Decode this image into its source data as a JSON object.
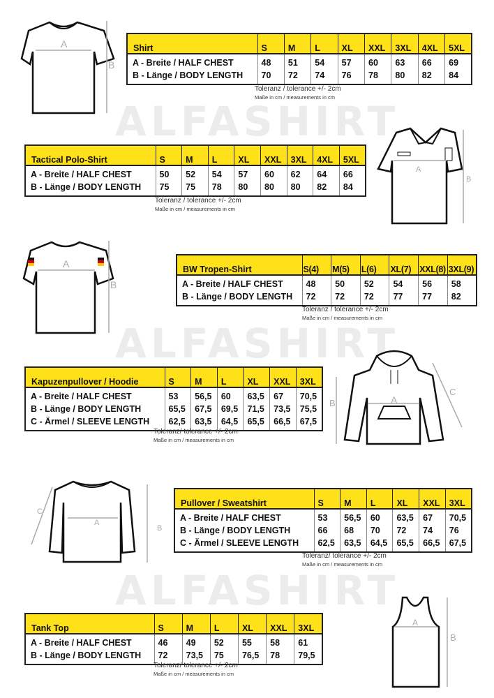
{
  "watermark": "ALFASHIRT",
  "accent_color": "#ffe11a",
  "products": [
    {
      "title": "Shirt",
      "sizes": [
        "S",
        "M",
        "L",
        "XL",
        "XXL",
        "3XL",
        "4XL",
        "5XL"
      ],
      "rows": [
        {
          "label": "A -  Breite / HALF CHEST",
          "values": [
            "48",
            "51",
            "54",
            "57",
            "60",
            "63",
            "66",
            "69"
          ]
        },
        {
          "label": "B -  Länge / BODY LENGTH",
          "values": [
            "70",
            "72",
            "74",
            "76",
            "78",
            "80",
            "82",
            "84"
          ]
        }
      ],
      "tolerance": "Toleranz / tolerance +/- 2cm",
      "note": "Maße in cm / measurements in cm",
      "dim_labels": [
        "A",
        "B"
      ]
    },
    {
      "title": "Tactical Polo-Shirt",
      "sizes": [
        "S",
        "M",
        "L",
        "XL",
        "XXL",
        "3XL",
        "4XL",
        "5XL"
      ],
      "rows": [
        {
          "label": "A -  Breite / HALF CHEST",
          "values": [
            "50",
            "52",
            "54",
            "57",
            "60",
            "62",
            "64",
            "66"
          ]
        },
        {
          "label": "B -  Länge / BODY LENGTH",
          "values": [
            "75",
            "75",
            "78",
            "80",
            "80",
            "80",
            "82",
            "84"
          ]
        }
      ],
      "tolerance": "Toleranz / tolerance +/- 2cm",
      "note": "Maße in cm / measurements in cm",
      "dim_labels": [
        "A",
        "B"
      ]
    },
    {
      "title": "BW Tropen-Shirt",
      "sizes": [
        "S(4)",
        "M(5)",
        "L(6)",
        "XL(7)",
        "XXL(8)",
        "3XL(9)"
      ],
      "rows": [
        {
          "label": "A -  Breite / HALF CHEST",
          "values": [
            "48",
            "50",
            "52",
            "54",
            "56",
            "58"
          ]
        },
        {
          "label": "B -  Länge / BODY LENGTH",
          "values": [
            "72",
            "72",
            "72",
            "77",
            "77",
            "82"
          ]
        }
      ],
      "tolerance": "Toleranz / tolerance +/- 2cm",
      "note": "Maße in cm / measurements in cm",
      "dim_labels": [
        "A",
        "B"
      ]
    },
    {
      "title": "Kapuzenpullover / Hoodie",
      "sizes": [
        "S",
        "M",
        "L",
        "XL",
        "XXL",
        "3XL"
      ],
      "rows": [
        {
          "label": "A -  Breite / HALF CHEST",
          "values": [
            "53",
            "56,5",
            "60",
            "63,5",
            "67",
            "70,5"
          ]
        },
        {
          "label": "B -  Länge / BODY LENGTH",
          "values": [
            "65,5",
            "67,5",
            "69,5",
            "71,5",
            "73,5",
            "75,5"
          ]
        },
        {
          "label": "C -  Ärmel / SLEEVE LENGTH",
          "values": [
            "62,5",
            "63,5",
            "64,5",
            "65,5",
            "66,5",
            "67,5"
          ]
        }
      ],
      "tolerance": "Toleranz/ tolerance +/- 2cm",
      "note": "Maße in cm / measurements in cm",
      "dim_labels": [
        "A",
        "B",
        "C"
      ]
    },
    {
      "title": "Pullover / Sweatshirt",
      "sizes": [
        "S",
        "M",
        "L",
        "XL",
        "XXL",
        "3XL"
      ],
      "rows": [
        {
          "label": "A -  Breite / HALF CHEST",
          "values": [
            "53",
            "56,5",
            "60",
            "63,5",
            "67",
            "70,5"
          ]
        },
        {
          "label": "B -  Länge / BODY LENGTH",
          "values": [
            "66",
            "68",
            "70",
            "72",
            "74",
            "76"
          ]
        },
        {
          "label": "C -  Ärmel / SLEEVE LENGTH",
          "values": [
            "62,5",
            "63,5",
            "64,5",
            "65,5",
            "66,5",
            "67,5"
          ]
        }
      ],
      "tolerance": "Toleranz/ tolerance +/- 2cm",
      "note": "Maße in cm / measurements in cm",
      "dim_labels": [
        "A",
        "B",
        "C"
      ]
    },
    {
      "title": "Tank Top",
      "sizes": [
        "S",
        "M",
        "L",
        "XL",
        "XXL",
        "3XL"
      ],
      "rows": [
        {
          "label": "A -  Breite / HALF CHEST",
          "values": [
            "46",
            "49",
            "52",
            "55",
            "58",
            "61"
          ]
        },
        {
          "label": "B -  Länge / BODY LENGTH",
          "values": [
            "72",
            "73,5",
            "75",
            "76,5",
            "78",
            "79,5"
          ]
        }
      ],
      "tolerance": "Toleranz/ tolerance +/- 2cm",
      "note": "Maße in cm / measurements in cm",
      "dim_labels": [
        "A",
        "B"
      ]
    }
  ]
}
